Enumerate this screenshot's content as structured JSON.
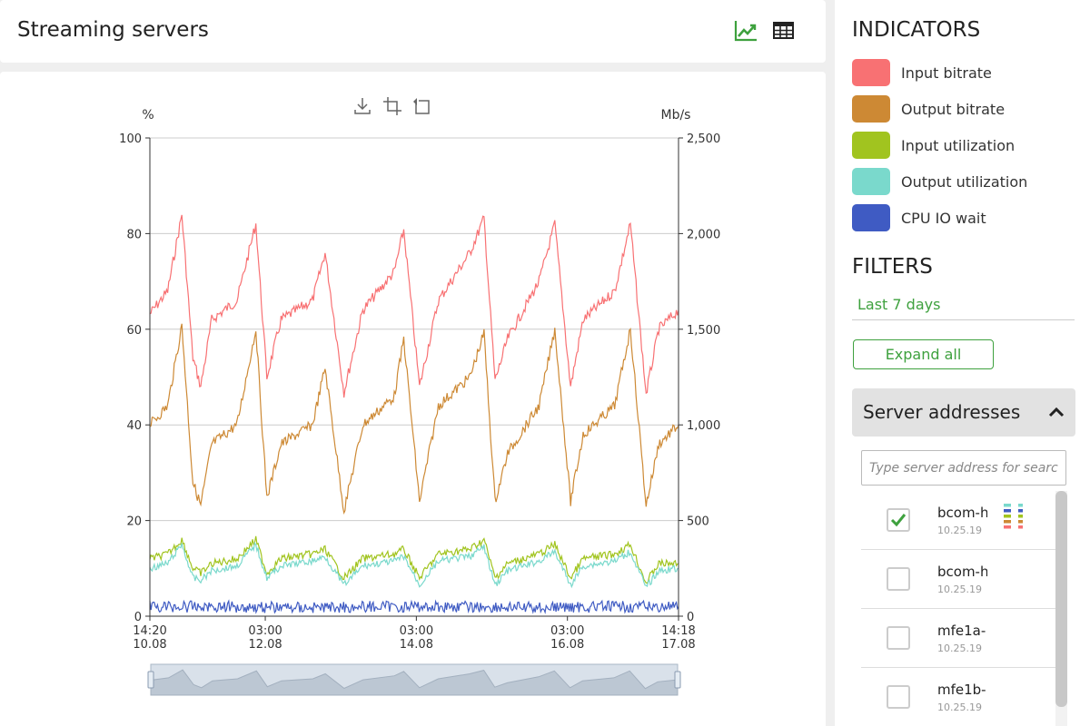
{
  "header": {
    "title": "Streaming servers",
    "view_icons": [
      "line-chart-icon",
      "table-icon"
    ]
  },
  "toolbox": {
    "icons": [
      "download-icon",
      "zoom-select-icon",
      "zoom-reset-icon"
    ]
  },
  "indicators": {
    "title": "INDICATORS",
    "items": [
      {
        "label": "Input bitrate",
        "color": "#f87173"
      },
      {
        "label": "Output bitrate",
        "color": "#cd8934"
      },
      {
        "label": "Input utilization",
        "color": "#a1c41f"
      },
      {
        "label": "Output utilization",
        "color": "#7ad9cc"
      },
      {
        "label": "CPU IO wait",
        "color": "#3f5bc3"
      }
    ]
  },
  "filters": {
    "title": "FILTERS",
    "period": "Last 7 days",
    "expand_label": "Expand all",
    "accordion_title": "Server addresses",
    "search_placeholder": "Type server address for search",
    "servers": [
      {
        "name": "bcom-h",
        "ip": "10.25.19",
        "checked": true
      },
      {
        "name": "bcom-h",
        "ip": "10.25.19",
        "checked": false
      },
      {
        "name": "mfe1a-",
        "ip": "10.25.19",
        "checked": false
      },
      {
        "name": "mfe1b-",
        "ip": "10.25.19",
        "checked": false
      }
    ]
  },
  "chart_data": {
    "type": "line",
    "left_axis": {
      "unit": "%",
      "min": 0,
      "max": 100,
      "ticks": [
        0,
        20,
        40,
        60,
        80,
        100
      ],
      "tick_labels": [
        "0",
        "20",
        "40",
        "60",
        "80",
        "100"
      ]
    },
    "right_axis": {
      "unit": "Mb/s",
      "min": 0,
      "max": 2500,
      "ticks": [
        0,
        500,
        1000,
        1500,
        2000,
        2500
      ],
      "tick_labels": [
        "0",
        "500",
        "1,000",
        "1,500",
        "2,000",
        "2,500"
      ]
    },
    "x_axis": {
      "start": "2020-08-10T14:20",
      "end": "2020-08-17T14:18",
      "tick_labels": [
        {
          "time": "14:20",
          "date": "10.08",
          "at": "2020-08-10T14:20"
        },
        {
          "time": "03:00",
          "date": "12.08",
          "at": "2020-08-12T03:00"
        },
        {
          "time": "03:00",
          "date": "14.08",
          "at": "2020-08-14T03:00"
        },
        {
          "time": "03:00",
          "date": "16.08",
          "at": "2020-08-16T03:00"
        },
        {
          "time": "14:18",
          "date": "17.08",
          "at": "2020-08-17T14:18"
        }
      ]
    },
    "grid": true,
    "series": [
      {
        "name": "Input bitrate",
        "axis": "right",
        "color": "#f87173",
        "points": [
          [
            "2020-08-10T14:20",
            1580
          ],
          [
            "2020-08-10T20:00",
            1700
          ],
          [
            "2020-08-11T00:30",
            2100
          ],
          [
            "2020-08-11T04:00",
            1350
          ],
          [
            "2020-08-11T06:30",
            1200
          ],
          [
            "2020-08-11T10:00",
            1550
          ],
          [
            "2020-08-11T18:00",
            1650
          ],
          [
            "2020-08-12T00:00",
            2050
          ],
          [
            "2020-08-12T03:30",
            1250
          ],
          [
            "2020-08-12T08:00",
            1550
          ],
          [
            "2020-08-12T18:00",
            1650
          ],
          [
            "2020-08-12T22:00",
            1900
          ],
          [
            "2020-08-13T04:00",
            1170
          ],
          [
            "2020-08-13T10:00",
            1600
          ],
          [
            "2020-08-13T20:00",
            1800
          ],
          [
            "2020-08-13T23:00",
            2020
          ],
          [
            "2020-08-14T04:00",
            1200
          ],
          [
            "2020-08-14T10:00",
            1650
          ],
          [
            "2020-08-14T20:00",
            1900
          ],
          [
            "2020-08-15T00:30",
            2080
          ],
          [
            "2020-08-15T04:00",
            1230
          ],
          [
            "2020-08-15T08:00",
            1450
          ],
          [
            "2020-08-15T18:00",
            1750
          ],
          [
            "2020-08-15T23:00",
            2050
          ],
          [
            "2020-08-16T04:00",
            1200
          ],
          [
            "2020-08-16T08:00",
            1550
          ],
          [
            "2020-08-16T18:00",
            1700
          ],
          [
            "2020-08-16T23:00",
            2050
          ],
          [
            "2020-08-17T04:00",
            1160
          ],
          [
            "2020-08-17T08:00",
            1500
          ],
          [
            "2020-08-17T14:18",
            1600
          ]
        ]
      },
      {
        "name": "Output bitrate",
        "axis": "right",
        "color": "#cd8934",
        "points": [
          [
            "2020-08-10T14:20",
            1000
          ],
          [
            "2020-08-10T20:00",
            1100
          ],
          [
            "2020-08-11T00:30",
            1520
          ],
          [
            "2020-08-11T04:00",
            700
          ],
          [
            "2020-08-11T06:30",
            580
          ],
          [
            "2020-08-11T10:00",
            900
          ],
          [
            "2020-08-11T18:00",
            1000
          ],
          [
            "2020-08-12T00:00",
            1500
          ],
          [
            "2020-08-12T03:30",
            620
          ],
          [
            "2020-08-12T08:00",
            900
          ],
          [
            "2020-08-12T18:00",
            1000
          ],
          [
            "2020-08-12T22:00",
            1300
          ],
          [
            "2020-08-13T04:00",
            550
          ],
          [
            "2020-08-13T10:00",
            1000
          ],
          [
            "2020-08-13T20:00",
            1150
          ],
          [
            "2020-08-13T23:00",
            1450
          ],
          [
            "2020-08-14T04:00",
            600
          ],
          [
            "2020-08-14T10:00",
            1100
          ],
          [
            "2020-08-14T20:00",
            1250
          ],
          [
            "2020-08-15T00:30",
            1480
          ],
          [
            "2020-08-15T04:00",
            600
          ],
          [
            "2020-08-15T08:00",
            850
          ],
          [
            "2020-08-15T18:00",
            1100
          ],
          [
            "2020-08-15T23:00",
            1500
          ],
          [
            "2020-08-16T04:00",
            600
          ],
          [
            "2020-08-16T08:00",
            950
          ],
          [
            "2020-08-16T18:00",
            1100
          ],
          [
            "2020-08-16T23:00",
            1500
          ],
          [
            "2020-08-17T04:00",
            580
          ],
          [
            "2020-08-17T08:00",
            900
          ],
          [
            "2020-08-17T14:18",
            1000
          ]
        ]
      },
      {
        "name": "Input utilization",
        "axis": "left",
        "color": "#a1c41f",
        "points": [
          [
            "2020-08-10T14:20",
            12
          ],
          [
            "2020-08-10T20:00",
            13
          ],
          [
            "2020-08-11T00:30",
            16
          ],
          [
            "2020-08-11T04:00",
            10
          ],
          [
            "2020-08-11T06:30",
            9
          ],
          [
            "2020-08-11T10:00",
            11
          ],
          [
            "2020-08-11T18:00",
            12
          ],
          [
            "2020-08-12T00:00",
            16
          ],
          [
            "2020-08-12T03:30",
            9
          ],
          [
            "2020-08-12T08:00",
            12
          ],
          [
            "2020-08-12T18:00",
            13
          ],
          [
            "2020-08-12T22:00",
            14
          ],
          [
            "2020-08-13T04:00",
            8
          ],
          [
            "2020-08-13T10:00",
            12
          ],
          [
            "2020-08-13T20:00",
            13
          ],
          [
            "2020-08-13T23:00",
            14
          ],
          [
            "2020-08-14T04:00",
            8
          ],
          [
            "2020-08-14T10:00",
            13
          ],
          [
            "2020-08-14T20:00",
            14
          ],
          [
            "2020-08-15T00:30",
            16
          ],
          [
            "2020-08-15T04:00",
            8
          ],
          [
            "2020-08-15T08:00",
            11
          ],
          [
            "2020-08-15T18:00",
            13
          ],
          [
            "2020-08-15T23:00",
            15
          ],
          [
            "2020-08-16T04:00",
            8
          ],
          [
            "2020-08-16T08:00",
            12
          ],
          [
            "2020-08-16T18:00",
            13
          ],
          [
            "2020-08-16T23:00",
            15
          ],
          [
            "2020-08-17T04:00",
            7
          ],
          [
            "2020-08-17T08:00",
            11
          ],
          [
            "2020-08-17T14:18",
            11
          ]
        ]
      },
      {
        "name": "Output utilization",
        "axis": "left",
        "color": "#7ad9cc",
        "points": [
          [
            "2020-08-10T14:20",
            10
          ],
          [
            "2020-08-10T20:00",
            11
          ],
          [
            "2020-08-11T00:30",
            15
          ],
          [
            "2020-08-11T04:00",
            8
          ],
          [
            "2020-08-11T06:30",
            7.5
          ],
          [
            "2020-08-11T10:00",
            9.5
          ],
          [
            "2020-08-11T18:00",
            10.5
          ],
          [
            "2020-08-12T00:00",
            15
          ],
          [
            "2020-08-12T03:30",
            8
          ],
          [
            "2020-08-12T08:00",
            10.5
          ],
          [
            "2020-08-12T18:00",
            11.5
          ],
          [
            "2020-08-12T22:00",
            12.5
          ],
          [
            "2020-08-13T04:00",
            6.5
          ],
          [
            "2020-08-13T10:00",
            10.5
          ],
          [
            "2020-08-13T20:00",
            11.5
          ],
          [
            "2020-08-13T23:00",
            12.5
          ],
          [
            "2020-08-14T04:00",
            6.5
          ],
          [
            "2020-08-14T10:00",
            11.5
          ],
          [
            "2020-08-14T20:00",
            12.5
          ],
          [
            "2020-08-15T00:30",
            14.5
          ],
          [
            "2020-08-15T04:00",
            6.5
          ],
          [
            "2020-08-15T08:00",
            9.5
          ],
          [
            "2020-08-15T18:00",
            11.5
          ],
          [
            "2020-08-15T23:00",
            13.5
          ],
          [
            "2020-08-16T04:00",
            6.5
          ],
          [
            "2020-08-16T08:00",
            10.5
          ],
          [
            "2020-08-16T18:00",
            11.5
          ],
          [
            "2020-08-16T23:00",
            13.5
          ],
          [
            "2020-08-17T04:00",
            6
          ],
          [
            "2020-08-17T08:00",
            9.5
          ],
          [
            "2020-08-17T14:18",
            10
          ]
        ]
      },
      {
        "name": "CPU IO wait",
        "axis": "left",
        "color": "#3f5bc3",
        "points": [
          [
            "2020-08-10T14:20",
            2
          ],
          [
            "2020-08-11T14:20",
            2
          ],
          [
            "2020-08-12T14:20",
            1.8
          ],
          [
            "2020-08-13T14:20",
            2
          ],
          [
            "2020-08-14T14:20",
            2
          ],
          [
            "2020-08-15T14:20",
            1.8
          ],
          [
            "2020-08-16T14:20",
            2
          ],
          [
            "2020-08-17T14:18",
            2
          ]
        ]
      }
    ]
  }
}
